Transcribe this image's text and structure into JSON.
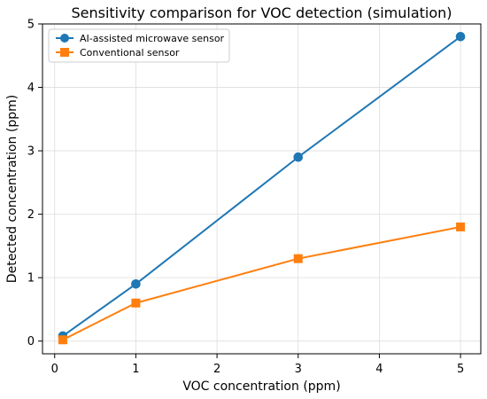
{
  "chart_data": {
    "type": "line",
    "title": "Sensitivity comparison for VOC detection (simulation)",
    "xlabel": "VOC concentration (ppm)",
    "ylabel": "Detected concentration (ppm)",
    "xlim": [
      -0.15,
      5.25
    ],
    "ylim": [
      -0.2,
      5.0
    ],
    "xticks": [
      0,
      1,
      2,
      3,
      4,
      5
    ],
    "yticks": [
      0,
      1,
      2,
      3,
      4,
      5
    ],
    "grid": true,
    "legend_position": "upper-left",
    "series": [
      {
        "name": "AI-assisted microwave sensor",
        "color": "#1f77b4",
        "marker": "circle",
        "x": [
          0.1,
          1,
          3,
          5
        ],
        "y": [
          0.08,
          0.9,
          2.9,
          4.8
        ]
      },
      {
        "name": "Conventional sensor",
        "color": "#ff7f0e",
        "marker": "square",
        "x": [
          0.1,
          1,
          3,
          5
        ],
        "y": [
          0.02,
          0.6,
          1.3,
          1.8
        ]
      }
    ]
  }
}
